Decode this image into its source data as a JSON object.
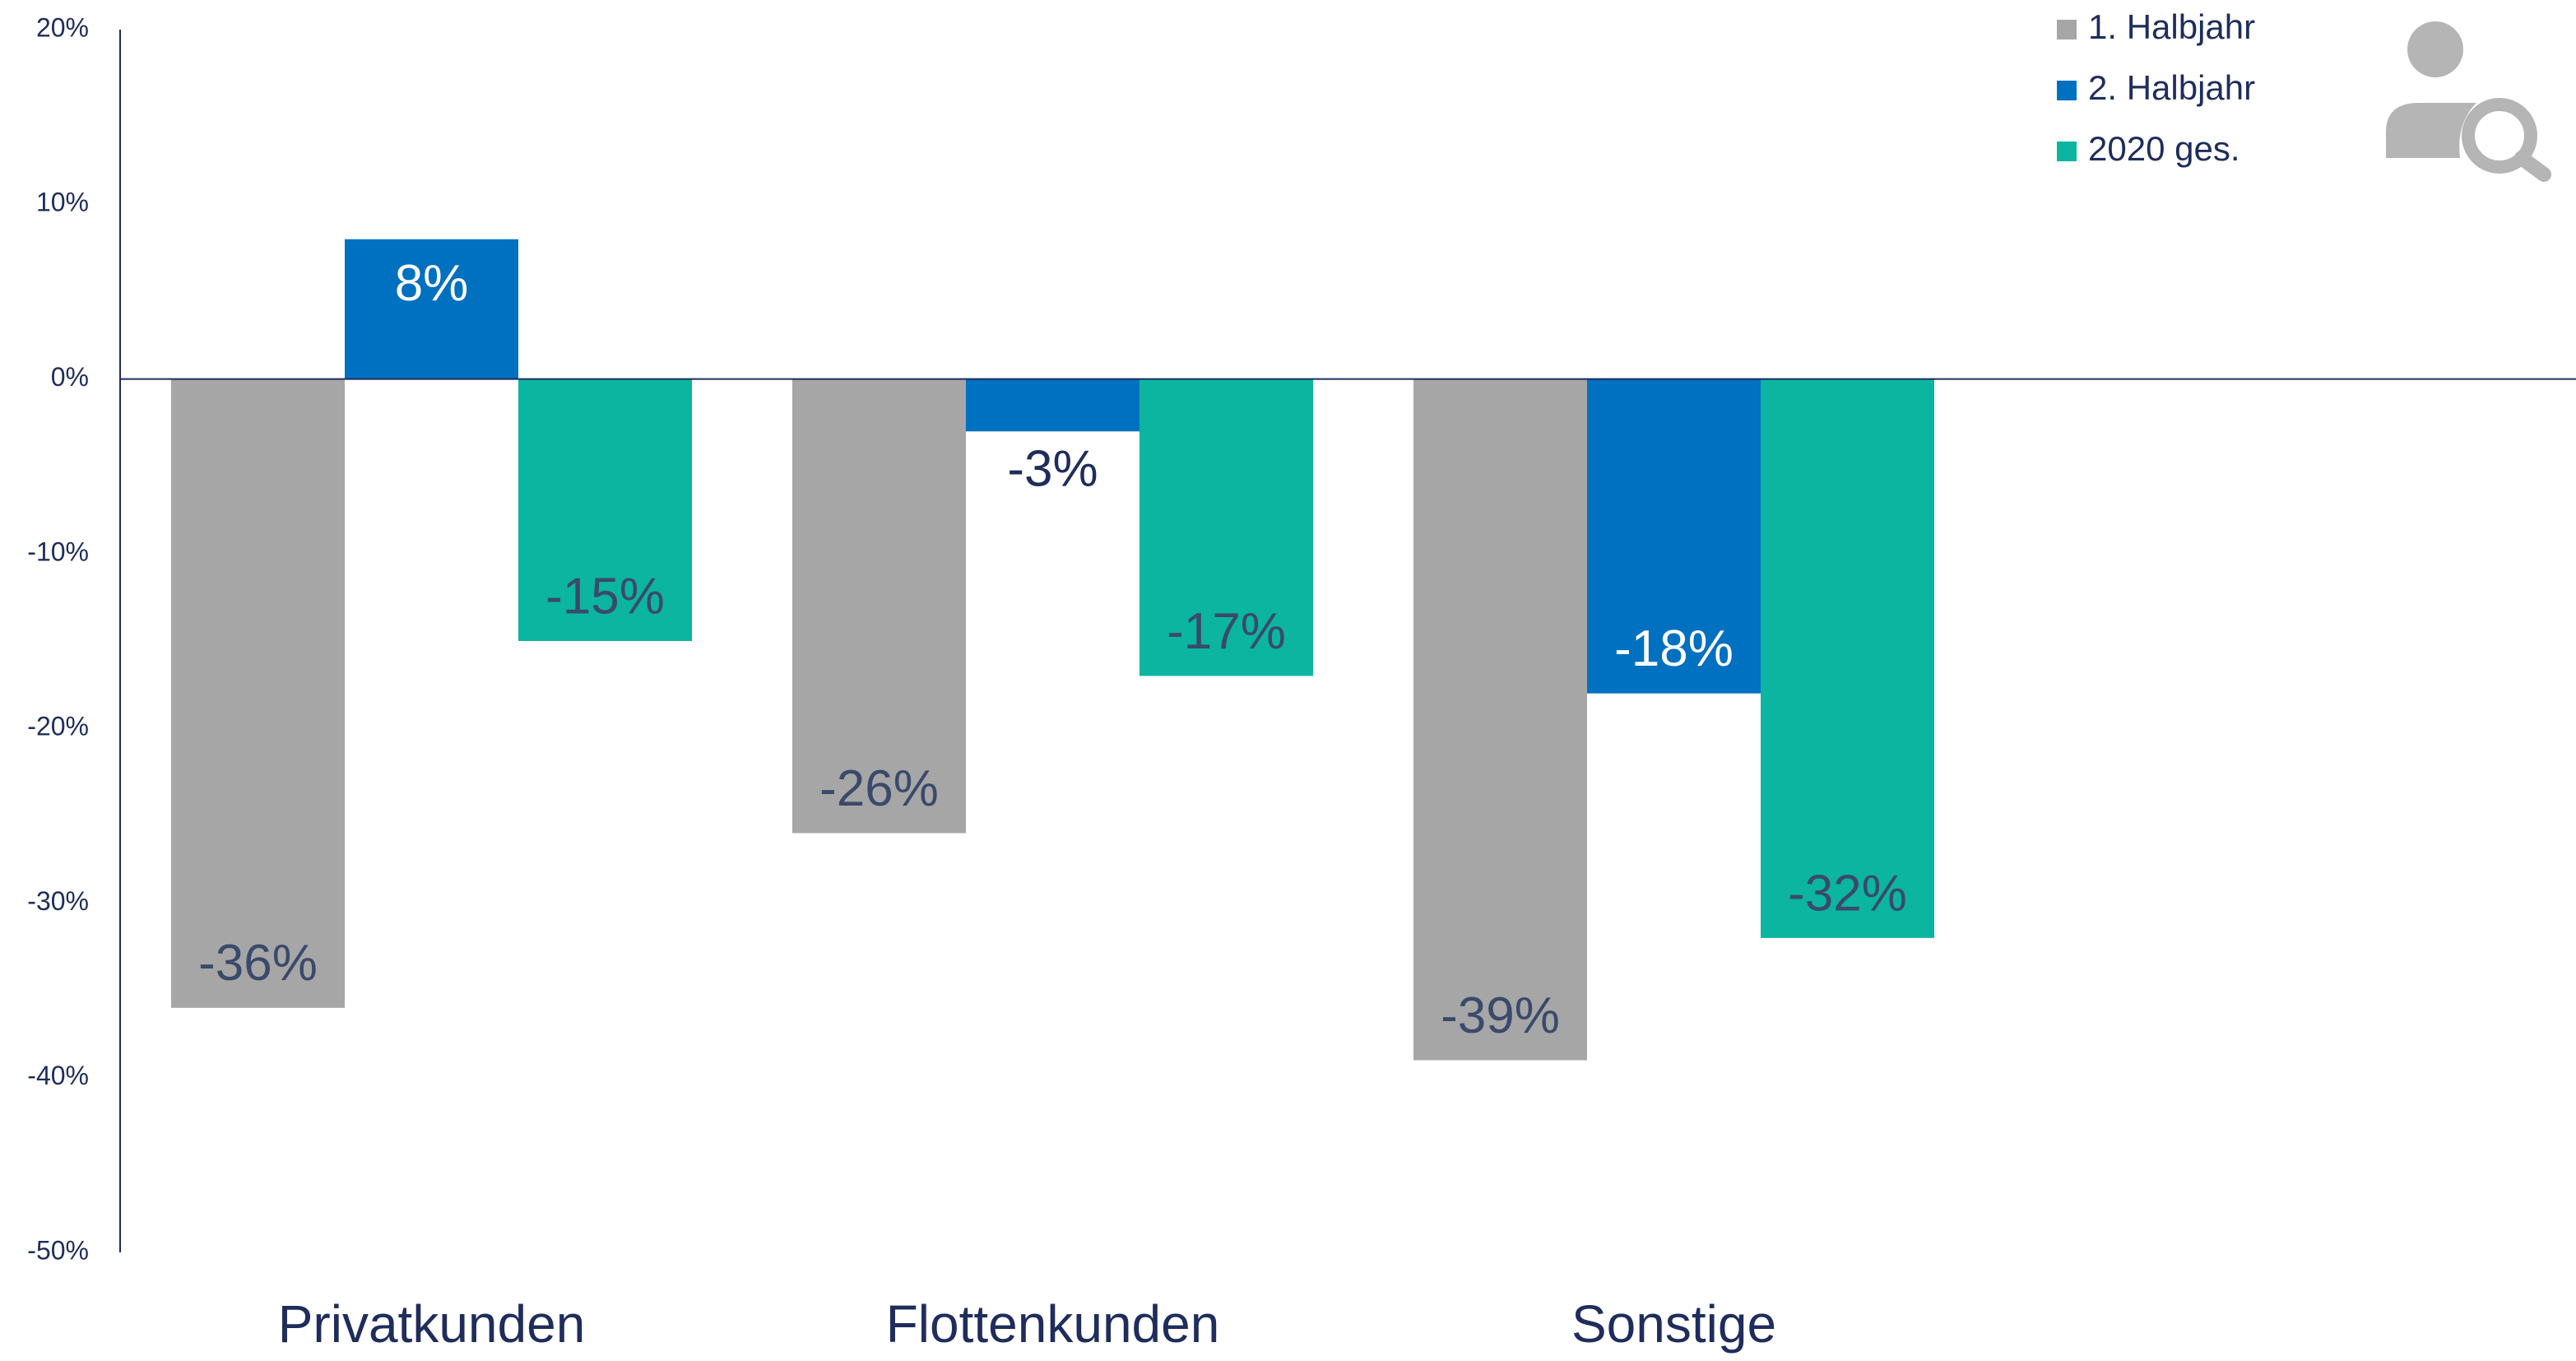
{
  "chart_data": {
    "type": "bar",
    "categories": [
      "Privatkunden",
      "Flottenkunden",
      "Sonstige"
    ],
    "series": [
      {
        "name": "1. Halbjahr",
        "color": "#a6a6a6",
        "values": [
          -36,
          -26,
          -39
        ],
        "value_labels": [
          "-36%",
          "-26%",
          "-39%"
        ]
      },
      {
        "name": "2. Halbjahr",
        "color": "#0070c0",
        "values": [
          8,
          -3,
          -18
        ],
        "value_labels": [
          "8%",
          "-3%",
          "-18%"
        ]
      },
      {
        "name": "2020 ges.",
        "color": "#0bb5a0",
        "values": [
          -15,
          -17,
          -32
        ],
        "value_labels": [
          "-15%",
          "-17%",
          "-32%"
        ]
      }
    ],
    "ylim": [
      -50,
      20
    ],
    "yticks": [
      {
        "value": 20,
        "label": "20%"
      },
      {
        "value": 10,
        "label": "10%"
      },
      {
        "value": 0,
        "label": "0%"
      },
      {
        "value": -10,
        "label": "-10%"
      },
      {
        "value": -20,
        "label": "-20%"
      },
      {
        "value": -30,
        "label": "-30%"
      },
      {
        "value": -40,
        "label": "-40%"
      },
      {
        "value": -50,
        "label": "-50%"
      }
    ],
    "legend": "upper right"
  }
}
